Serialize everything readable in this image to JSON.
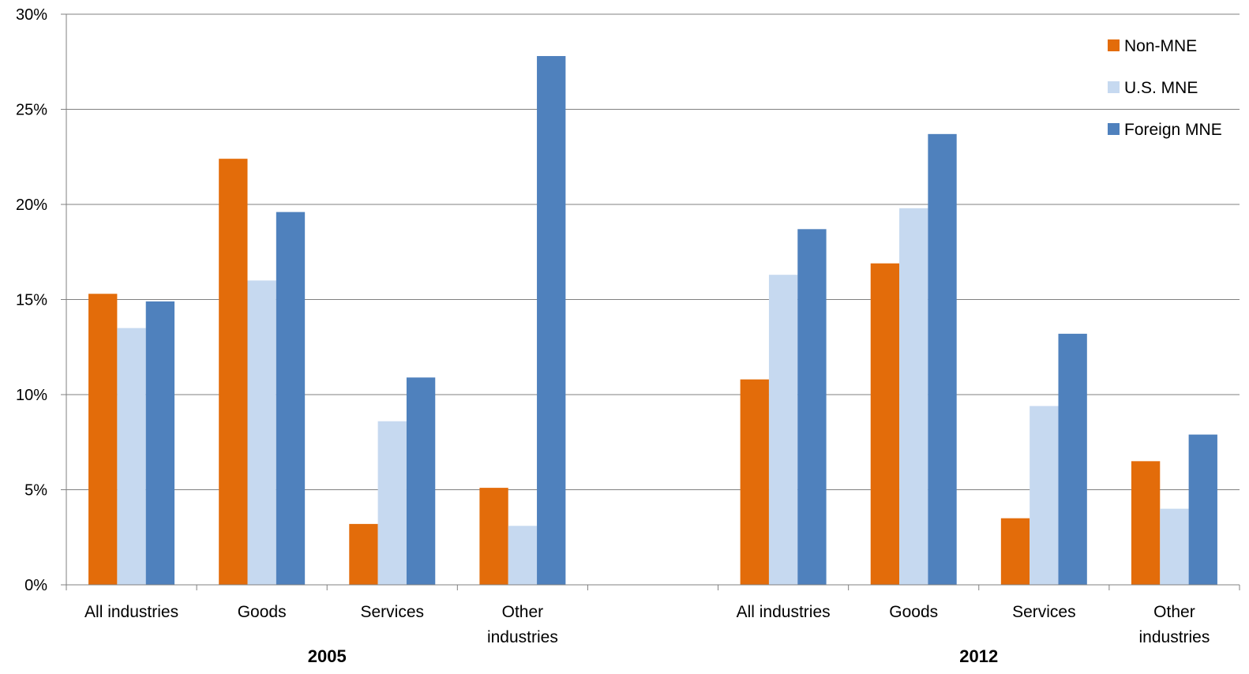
{
  "chart_data": {
    "type": "bar",
    "title": "",
    "xlabel": "",
    "ylabel": "",
    "ylim": [
      0,
      30
    ],
    "yticks": [
      "0%",
      "5%",
      "10%",
      "15%",
      "20%",
      "25%",
      "30%"
    ],
    "grid": true,
    "legend_position": "top-right",
    "groups": [
      {
        "label": "2005",
        "categories": [
          [
            "All industries"
          ],
          [
            "Goods"
          ],
          [
            "Services"
          ],
          [
            "Other",
            "industries"
          ]
        ]
      },
      {
        "label": "2012",
        "categories": [
          [
            "All industries"
          ],
          [
            "Goods"
          ],
          [
            "Services"
          ],
          [
            "Other",
            "industries"
          ]
        ]
      }
    ],
    "series": [
      {
        "name": "Non-MNE",
        "color": "#e36c0a",
        "values": [
          15.3,
          22.4,
          3.2,
          5.1,
          10.8,
          16.9,
          3.5,
          6.5
        ]
      },
      {
        "name": "U.S. MNE",
        "color": "#c6d9f0",
        "values": [
          13.5,
          16.0,
          8.6,
          3.1,
          16.3,
          19.8,
          9.4,
          4.0
        ]
      },
      {
        "name": "Foreign MNE",
        "color": "#4f81bd",
        "values": [
          14.9,
          19.6,
          10.9,
          27.8,
          18.7,
          23.7,
          13.2,
          7.9
        ]
      }
    ]
  }
}
